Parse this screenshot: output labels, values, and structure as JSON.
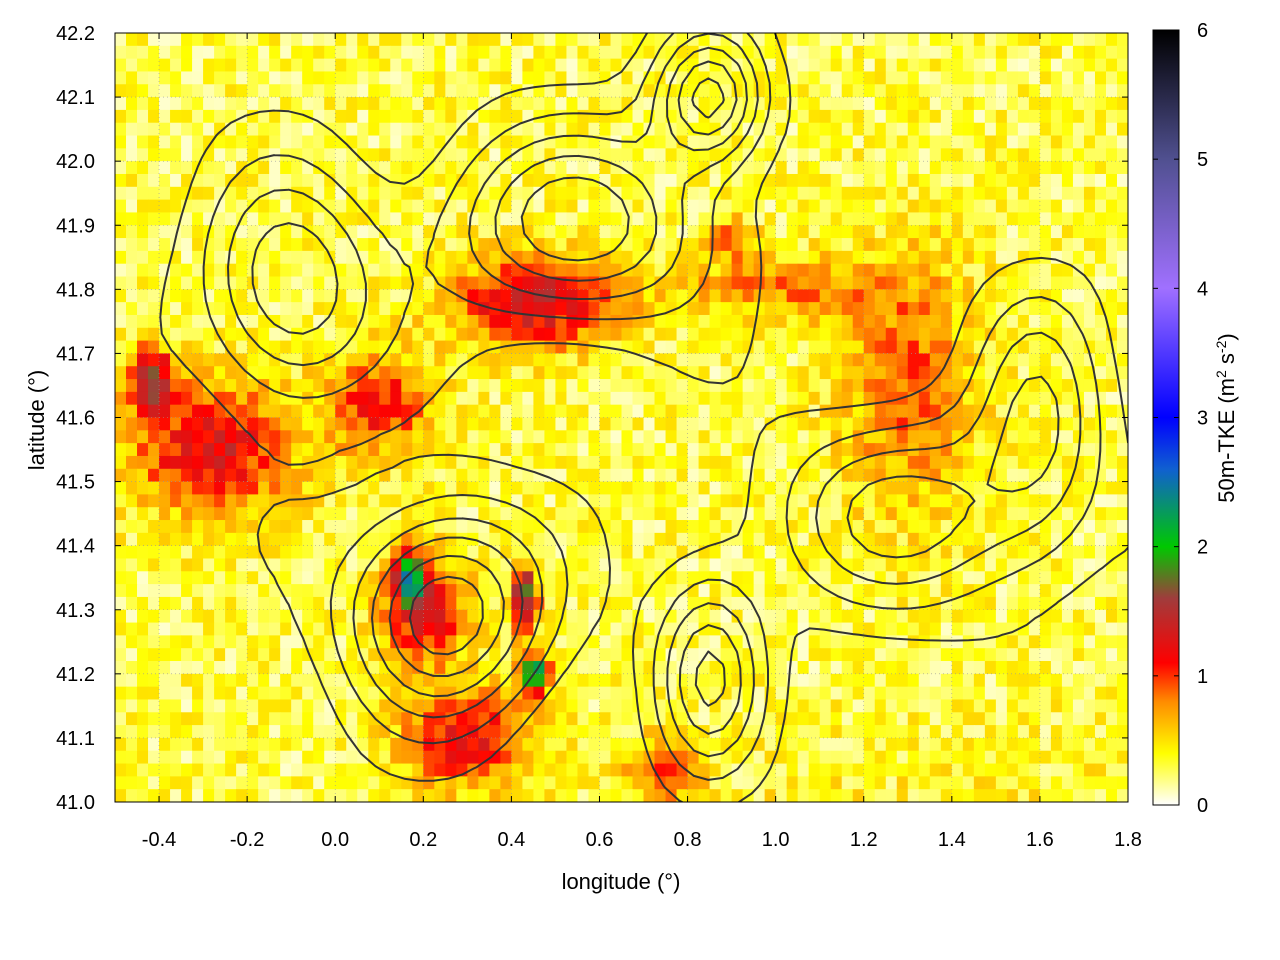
{
  "chart_data": {
    "type": "heatmap",
    "title": "",
    "xlabel": "longitude (°)",
    "ylabel": "latitude (°)",
    "xlim": [
      -0.5,
      1.8
    ],
    "ylim": [
      41.0,
      42.2
    ],
    "x_ticks": [
      "-0.4",
      "-0.2",
      "0.0",
      "0.2",
      "0.4",
      "0.6",
      "0.8",
      "1.0",
      "1.2",
      "1.4",
      "1.6",
      "1.8"
    ],
    "x_tick_values": [
      -0.4,
      -0.2,
      0.0,
      0.2,
      0.4,
      0.6,
      0.8,
      1.0,
      1.2,
      1.4,
      1.6,
      1.8
    ],
    "y_ticks": [
      "41.0",
      "41.1",
      "41.2",
      "41.3",
      "41.4",
      "41.5",
      "41.6",
      "41.7",
      "41.8",
      "41.9",
      "42.0",
      "42.1",
      "42.2"
    ],
    "y_tick_values": [
      41.0,
      41.1,
      41.2,
      41.3,
      41.4,
      41.5,
      41.6,
      41.7,
      41.8,
      41.9,
      42.0,
      42.1,
      42.2
    ],
    "grid": true,
    "colorbar": {
      "label": "50m-TKE (m² s⁻²)",
      "label_main": "50m-TKE (m",
      "label_sup1": "2",
      "label_mid": " s",
      "label_sup2": "-2",
      "label_end": ")",
      "range": [
        0,
        6
      ],
      "ticks": [
        "0",
        "1",
        "2",
        "3",
        "4",
        "5",
        "6"
      ],
      "tick_values": [
        0,
        1,
        2,
        3,
        4,
        5,
        6
      ],
      "palette": [
        {
          "value": 0.0,
          "color": "#ffffff"
        },
        {
          "value": 0.4,
          "color": "#ffff00"
        },
        {
          "value": 0.8,
          "color": "#ff8c00"
        },
        {
          "value": 1.1,
          "color": "#ff0000"
        },
        {
          "value": 1.6,
          "color": "#a03c3c"
        },
        {
          "value": 2.0,
          "color": "#00c800"
        },
        {
          "value": 2.6,
          "color": "#1060d0"
        },
        {
          "value": 3.0,
          "color": "#0000ff"
        },
        {
          "value": 4.0,
          "color": "#a070ff"
        },
        {
          "value": 5.0,
          "color": "#505090"
        },
        {
          "value": 6.0,
          "color": "#000000"
        }
      ]
    },
    "hotspots": [
      {
        "lon": -0.28,
        "lat": 41.55,
        "amp": 1.0,
        "slon": 0.18,
        "slat": 0.1
      },
      {
        "lon": -0.42,
        "lat": 41.66,
        "amp": 1.3,
        "slon": 0.05,
        "slat": 0.05
      },
      {
        "lon": 0.1,
        "lat": 41.62,
        "amp": 0.8,
        "slon": 0.12,
        "slat": 0.08
      },
      {
        "lon": 0.45,
        "lat": 41.78,
        "amp": 1.1,
        "slon": 0.18,
        "slat": 0.07
      },
      {
        "lon": 0.2,
        "lat": 41.3,
        "amp": 1.0,
        "slon": 0.1,
        "slat": 0.08
      },
      {
        "lon": 0.17,
        "lat": 41.35,
        "amp": 1.6,
        "slon": 0.03,
        "slat": 0.04
      },
      {
        "lon": 0.43,
        "lat": 41.32,
        "amp": 1.5,
        "slon": 0.03,
        "slat": 0.05
      },
      {
        "lon": 0.45,
        "lat": 41.2,
        "amp": 2.2,
        "slon": 0.03,
        "slat": 0.03
      },
      {
        "lon": 0.3,
        "lat": 41.1,
        "amp": 0.9,
        "slon": 0.15,
        "slat": 0.08
      },
      {
        "lon": 1.3,
        "lat": 41.65,
        "amp": 0.6,
        "slon": 0.15,
        "slat": 0.2
      },
      {
        "lon": 0.9,
        "lat": 41.88,
        "amp": 0.7,
        "slon": 0.05,
        "slat": 0.03
      },
      {
        "lon": 0.75,
        "lat": 41.05,
        "amp": 0.8,
        "slon": 0.08,
        "slat": 0.05
      },
      {
        "lon": 1.0,
        "lat": 41.8,
        "amp": 0.5,
        "slon": 0.25,
        "slat": 0.05
      }
    ],
    "contour_bumps": [
      {
        "lon": 0.25,
        "lat": 41.3,
        "amp": 1.0,
        "slon": 0.22,
        "slat": 0.16
      },
      {
        "lon": 0.55,
        "lat": 41.9,
        "amp": 0.8,
        "slon": 0.3,
        "slat": 0.15
      },
      {
        "lon": -0.1,
        "lat": 41.8,
        "amp": 0.7,
        "slon": 0.2,
        "slat": 0.18
      },
      {
        "lon": 0.85,
        "lat": 42.1,
        "amp": 0.9,
        "slon": 0.12,
        "slat": 0.1
      },
      {
        "lon": 1.3,
        "lat": 41.45,
        "amp": 0.6,
        "slon": 0.3,
        "slat": 0.15
      },
      {
        "lon": 0.85,
        "lat": 41.2,
        "amp": 0.7,
        "slon": 0.12,
        "slat": 0.15
      },
      {
        "lon": 1.6,
        "lat": 41.6,
        "amp": 0.5,
        "slon": 0.15,
        "slat": 0.2
      }
    ],
    "contour_levels": [
      0.2,
      0.35,
      0.5,
      0.65,
      0.8,
      0.95
    ]
  }
}
